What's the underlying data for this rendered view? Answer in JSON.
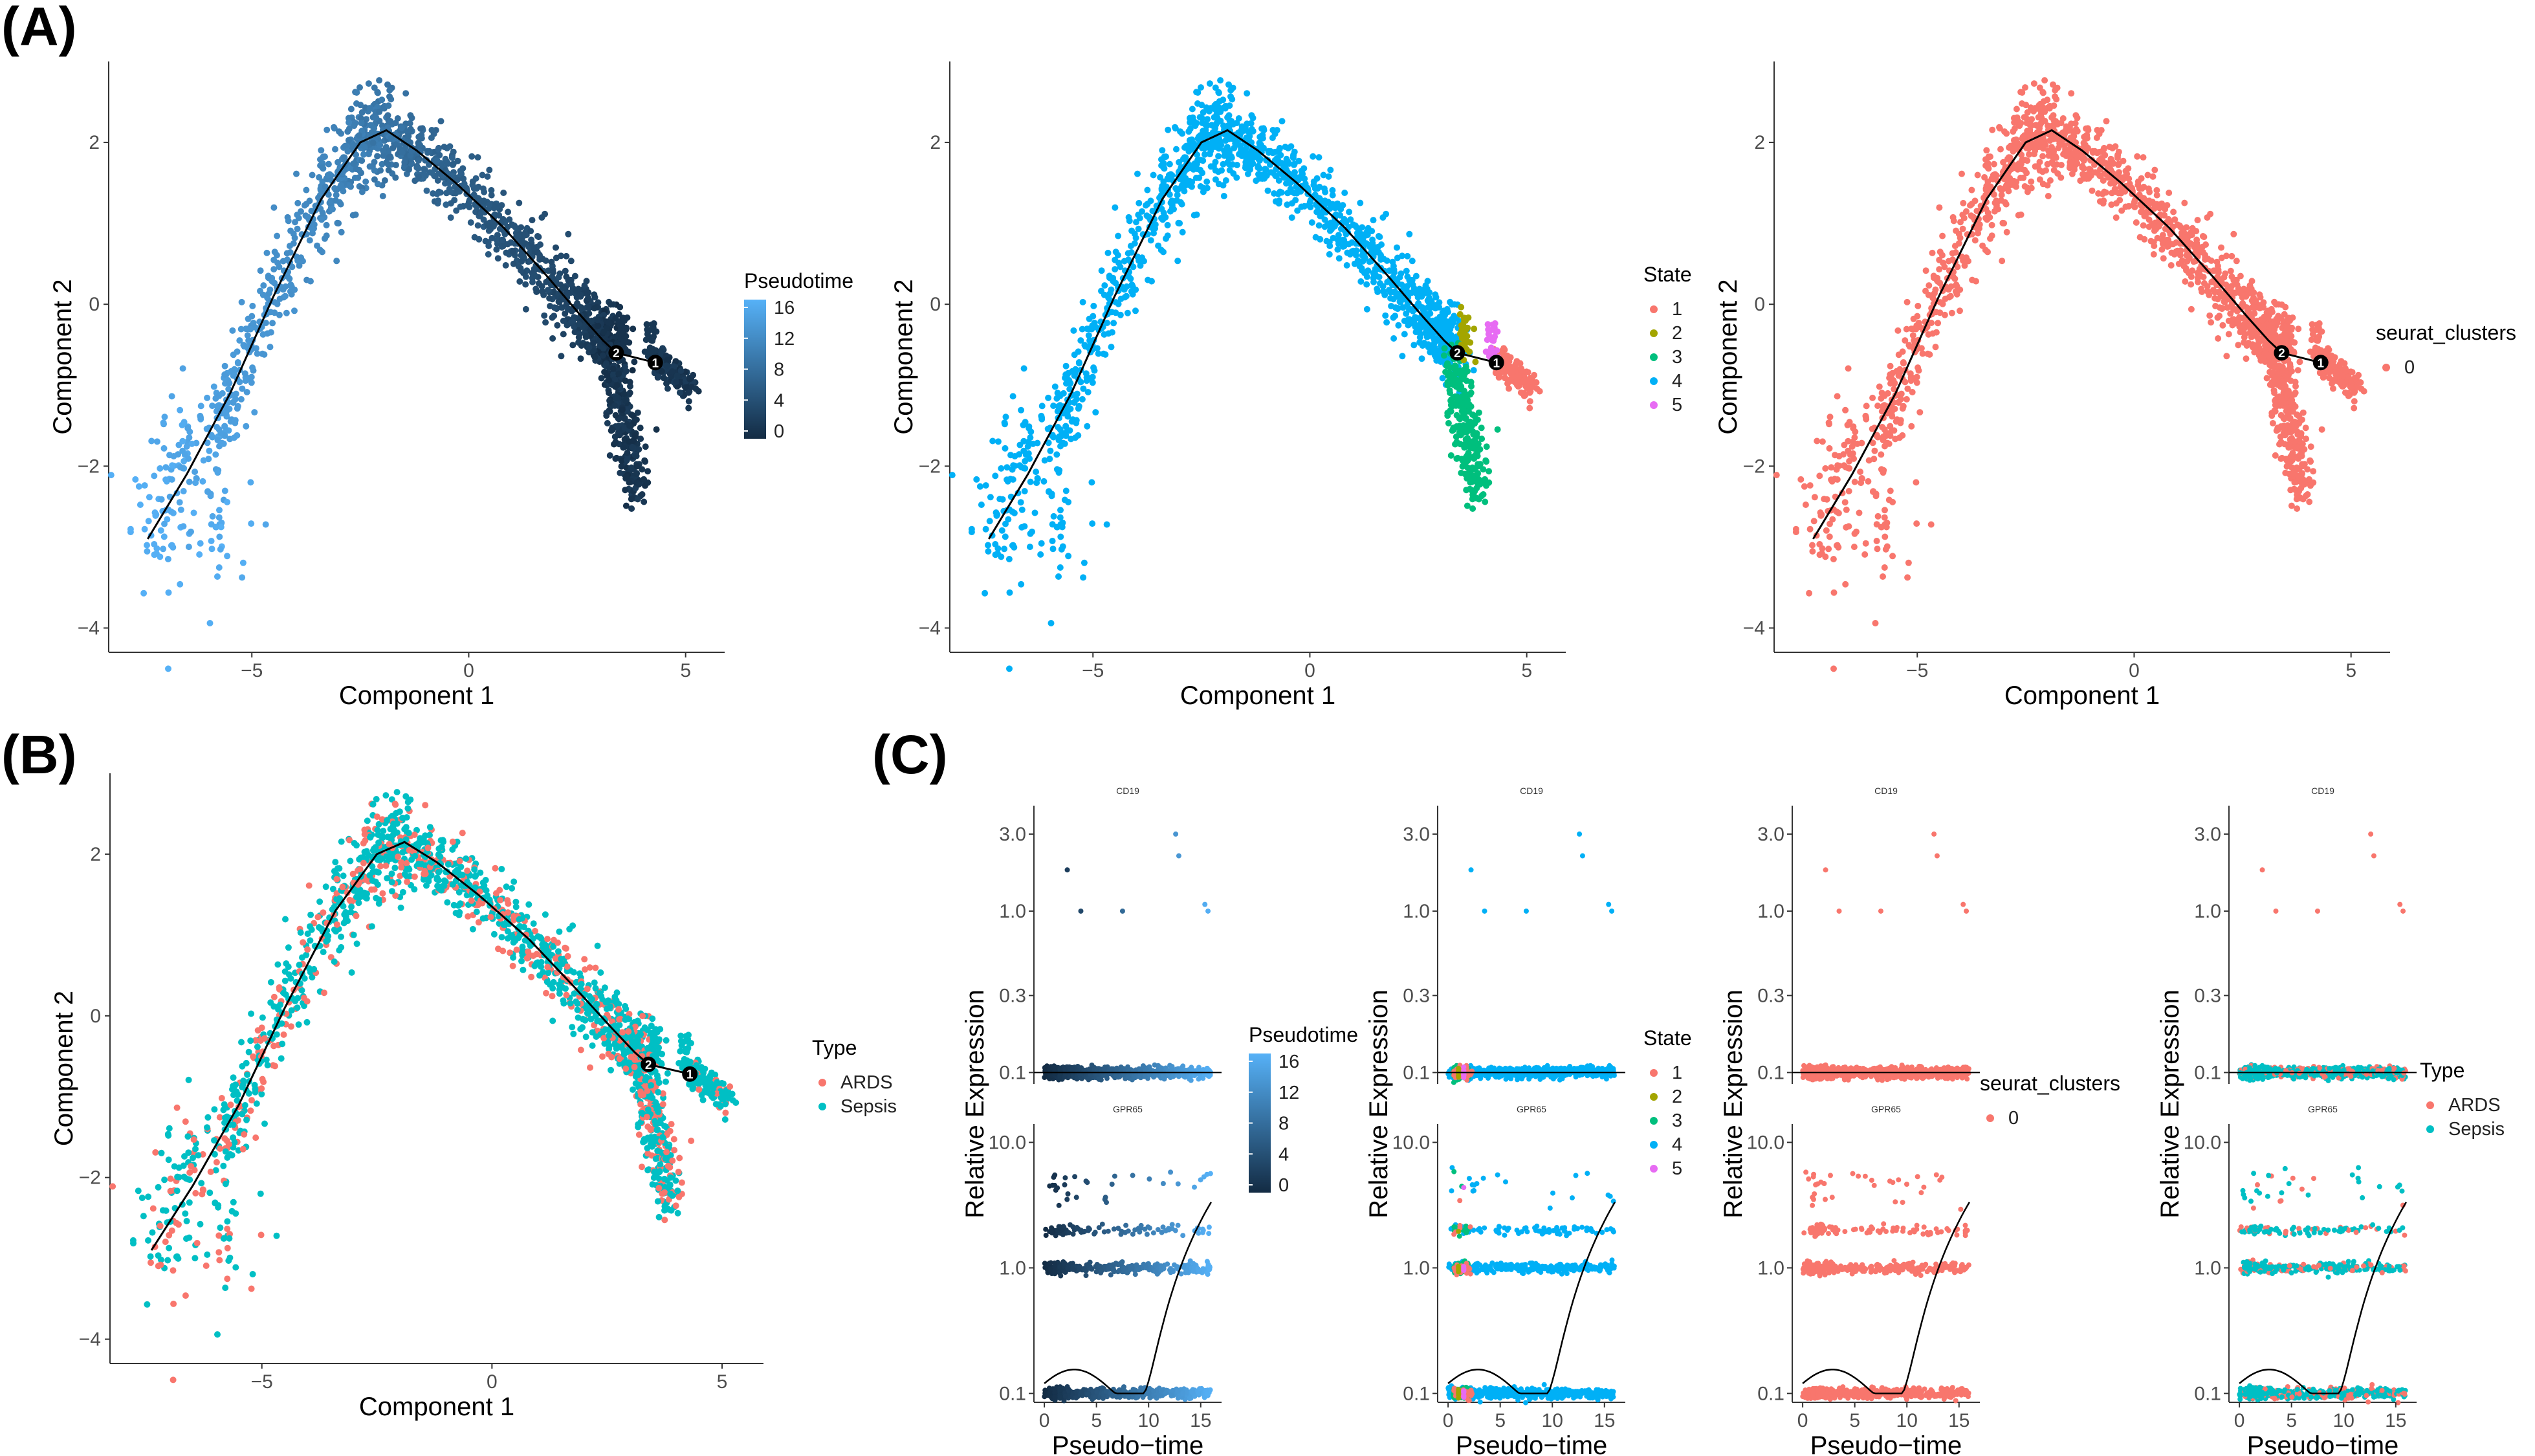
{
  "figure": {
    "panel_labels": [
      "(A)",
      "(B)",
      "(C)"
    ]
  },
  "colors": {
    "pseudotime_low": "#132B43",
    "pseudotime_high": "#56B1F7",
    "state_1": "#F8766D",
    "state_2": "#A3A500",
    "state_3": "#00BF7D",
    "state_4": "#00B0F6",
    "state_5": "#E76BF3",
    "cluster_0": "#F8766D",
    "ards": "#F8766D",
    "sepsis": "#00BFC4",
    "trajectory": "#000000"
  },
  "chart_data": [
    {
      "id": "A1",
      "type": "scatter",
      "xlabel": "Component 1",
      "ylabel": "Component 2",
      "xticks": [
        "-5",
        "0",
        "5"
      ],
      "yticks": [
        "-4",
        "-2",
        "0",
        "2"
      ],
      "xlim": [
        -8.3,
        5.9
      ],
      "ylim": [
        -4.3,
        3.0
      ],
      "color_by": "pseudotime",
      "legend": {
        "title": "Pseudotime",
        "kind": "gradient",
        "ticks": [
          "16",
          "12",
          "8",
          "4",
          "0"
        ]
      },
      "branch_points": [
        "2",
        "1"
      ]
    },
    {
      "id": "A2",
      "type": "scatter",
      "xlabel": "Component 1",
      "ylabel": "Component 2",
      "xticks": [
        "-5",
        "0",
        "5"
      ],
      "yticks": [
        "-4",
        "-2",
        "0",
        "2"
      ],
      "xlim": [
        -8.3,
        5.9
      ],
      "ylim": [
        -4.3,
        3.0
      ],
      "color_by": "state",
      "legend": {
        "title": "State",
        "kind": "discrete",
        "entries": [
          "1",
          "2",
          "3",
          "4",
          "5"
        ]
      },
      "branch_points": [
        "2",
        "1"
      ]
    },
    {
      "id": "A3",
      "type": "scatter",
      "xlabel": "Component 1",
      "ylabel": "Component 2",
      "xticks": [
        "-5",
        "0",
        "5"
      ],
      "yticks": [
        "-4",
        "-2",
        "0",
        "2"
      ],
      "xlim": [
        -8.3,
        5.9
      ],
      "ylim": [
        -4.3,
        3.0
      ],
      "color_by": "cluster",
      "legend": {
        "title": "seurat_clusters",
        "kind": "discrete",
        "entries": [
          "0"
        ]
      },
      "branch_points": [
        "2",
        "1"
      ]
    },
    {
      "id": "B",
      "type": "scatter",
      "xlabel": "Component 1",
      "ylabel": "Component 2",
      "xticks": [
        "-5",
        "0",
        "5"
      ],
      "yticks": [
        "-4",
        "-2",
        "0",
        "2"
      ],
      "xlim": [
        -8.3,
        5.9
      ],
      "ylim": [
        -4.3,
        3.0
      ],
      "color_by": "type",
      "legend": {
        "title": "Type",
        "kind": "discrete",
        "entries": [
          "ARDS",
          "Sepsis"
        ]
      },
      "branch_points": [
        "2",
        "1"
      ]
    },
    {
      "id": "C1",
      "type": "scatter",
      "xlabel": "Pseudo-time",
      "ylabel": "Relative Expression",
      "xticks": [
        "0",
        "5",
        "10",
        "15"
      ],
      "xlim": [
        -1,
        17
      ],
      "facets": [
        {
          "gene": "CD19",
          "yticks": [
            "3.0",
            "1.0",
            "0.3",
            "0.1"
          ],
          "ylim": [
            0.085,
            4.5
          ],
          "curve": false
        },
        {
          "gene": "GPR65",
          "yticks": [
            "10.0",
            "1.0",
            "0.1"
          ],
          "ylim": [
            0.085,
            14
          ],
          "curve": true
        }
      ],
      "color_by": "pseudotime",
      "legend": {
        "title": "Pseudotime",
        "kind": "gradient",
        "ticks": [
          "16",
          "12",
          "8",
          "4",
          "0"
        ]
      }
    },
    {
      "id": "C2",
      "type": "scatter",
      "xlabel": "Pseudo-time",
      "ylabel": "Relative Expression",
      "xticks": [
        "0",
        "5",
        "10",
        "15"
      ],
      "xlim": [
        -1,
        17
      ],
      "facets": [
        {
          "gene": "CD19",
          "yticks": [
            "3.0",
            "1.0",
            "0.3",
            "0.1"
          ],
          "ylim": [
            0.085,
            4.5
          ],
          "curve": false
        },
        {
          "gene": "GPR65",
          "yticks": [
            "10.0",
            "1.0",
            "0.1"
          ],
          "ylim": [
            0.085,
            14
          ],
          "curve": true
        }
      ],
      "color_by": "state",
      "legend": {
        "title": "State",
        "kind": "discrete",
        "entries": [
          "1",
          "2",
          "3",
          "4",
          "5"
        ]
      }
    },
    {
      "id": "C3",
      "type": "scatter",
      "xlabel": "Pseudo-time",
      "ylabel": "Relative Expression",
      "xticks": [
        "0",
        "5",
        "10",
        "15"
      ],
      "xlim": [
        -1,
        17
      ],
      "facets": [
        {
          "gene": "CD19",
          "yticks": [
            "3.0",
            "1.0",
            "0.3",
            "0.1"
          ],
          "ylim": [
            0.085,
            4.5
          ],
          "curve": false
        },
        {
          "gene": "GPR65",
          "yticks": [
            "10.0",
            "1.0",
            "0.1"
          ],
          "ylim": [
            0.085,
            14
          ],
          "curve": true
        }
      ],
      "color_by": "cluster",
      "legend": {
        "title": "seurat_clusters",
        "kind": "discrete",
        "entries": [
          "0"
        ]
      }
    },
    {
      "id": "C4",
      "type": "scatter",
      "xlabel": "Pseudo-time",
      "ylabel": "Relative Expression",
      "xticks": [
        "0",
        "5",
        "10",
        "15"
      ],
      "xlim": [
        -1,
        17
      ],
      "facets": [
        {
          "gene": "CD19",
          "yticks": [
            "3.0",
            "1.0",
            "0.3",
            "0.1"
          ],
          "ylim": [
            0.085,
            4.5
          ],
          "curve": false
        },
        {
          "gene": "GPR65",
          "yticks": [
            "10.0",
            "1.0",
            "0.1"
          ],
          "ylim": [
            0.085,
            14
          ],
          "curve": true
        }
      ],
      "color_by": "type",
      "legend": {
        "title": "Type",
        "kind": "discrete",
        "entries": [
          "ARDS",
          "Sepsis"
        ]
      }
    }
  ]
}
